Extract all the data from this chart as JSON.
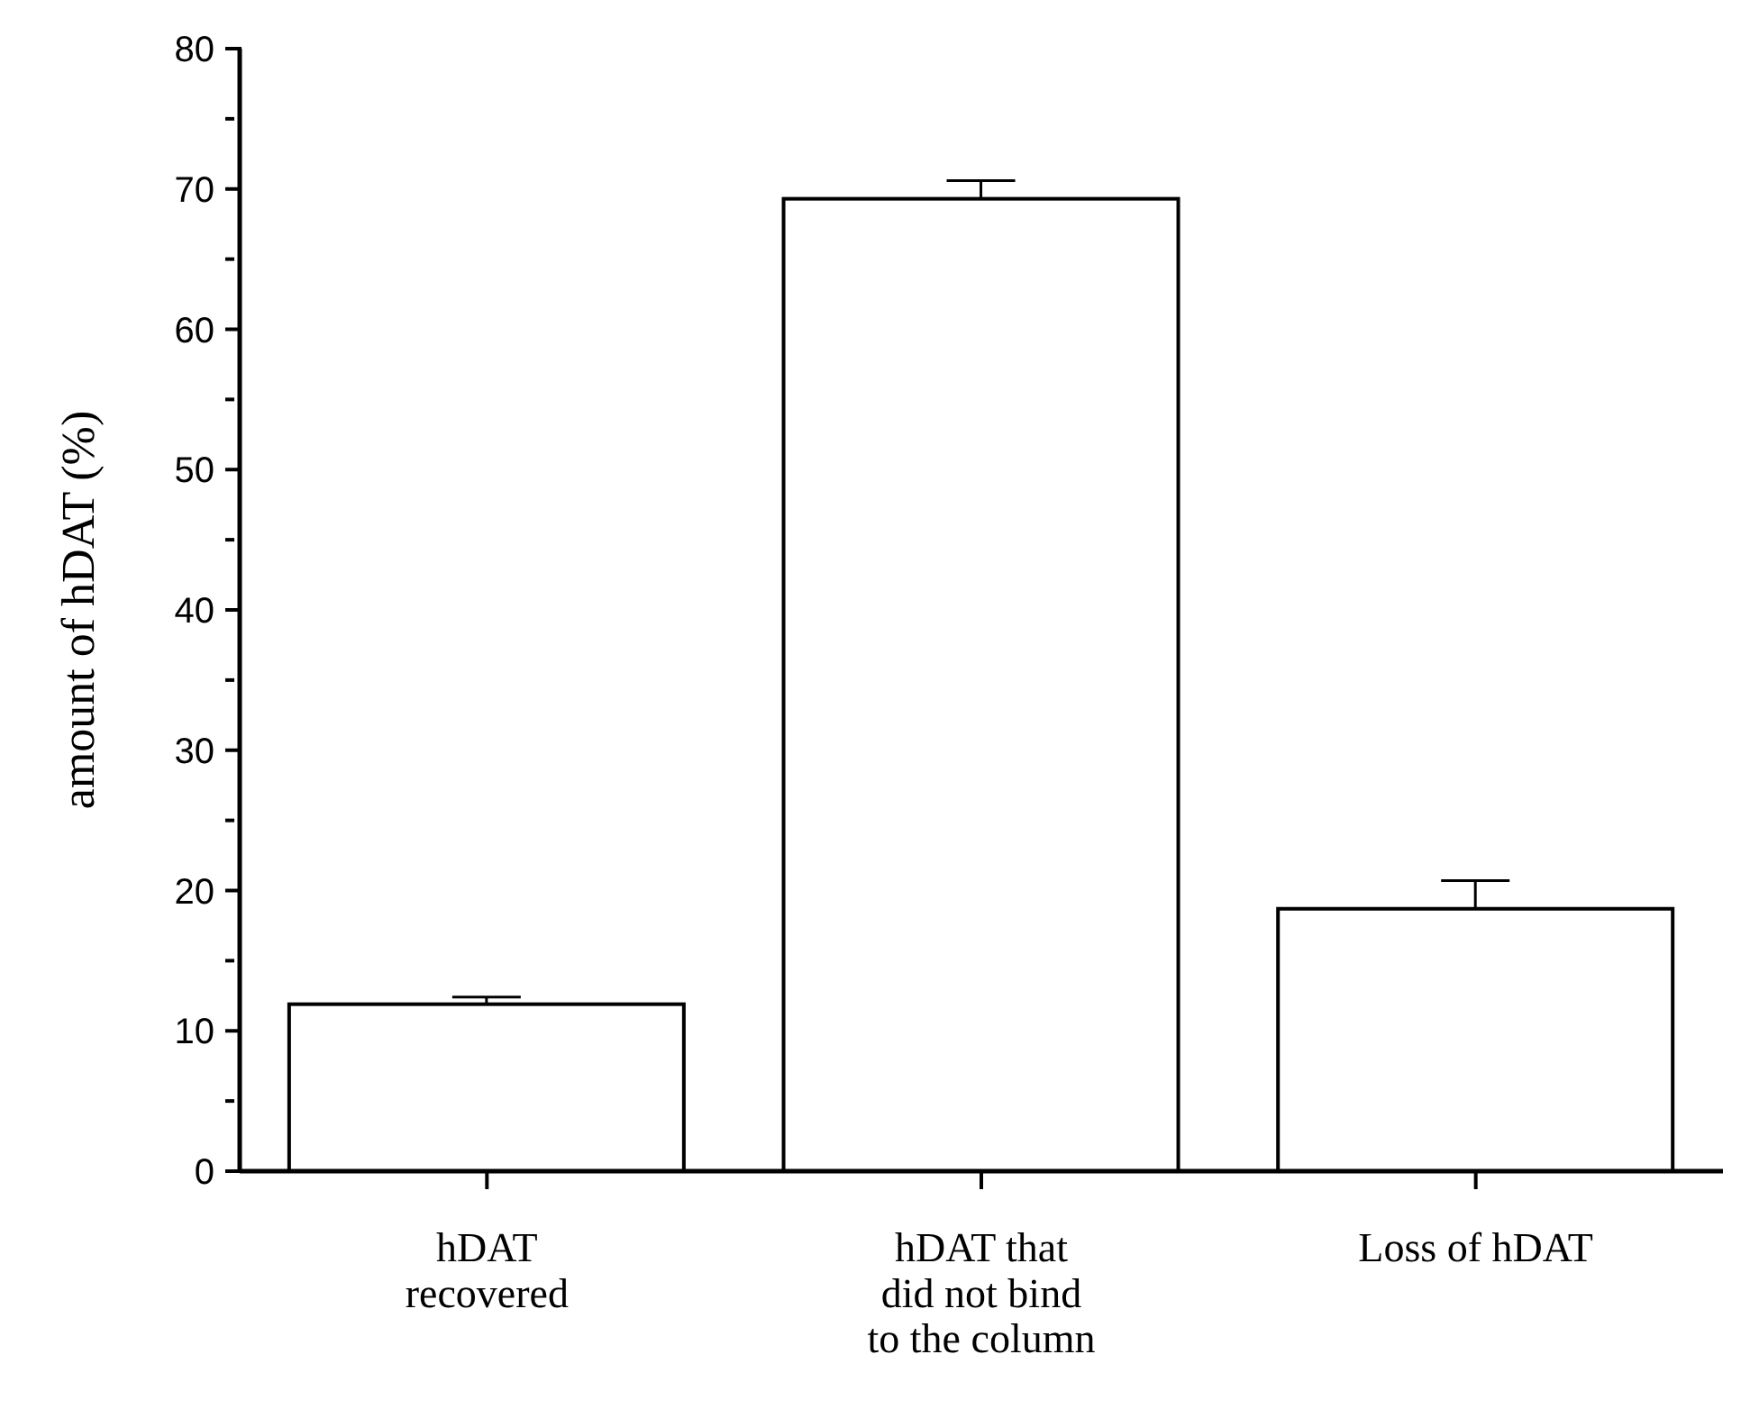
{
  "chart_data": {
    "type": "bar",
    "ylabel": "amount of hDAT (%)",
    "categories": [
      "hDAT\nrecovered",
      "hDAT that\ndid not bind\nto the column",
      "Loss of hDAT"
    ],
    "values": [
      11.9,
      69.3,
      18.7
    ],
    "errors": [
      0.5,
      1.3,
      2.0
    ],
    "color": "#ffffff",
    "ylim": [
      0,
      80
    ],
    "yticks": [
      0,
      {
        "value": 5,
        "label": null
      },
      10,
      {
        "value": 15,
        "label": null
      },
      20,
      {
        "value": 25,
        "label": null
      },
      30,
      {
        "value": 35,
        "label": null
      },
      40,
      {
        "value": 45,
        "label": null
      },
      50,
      {
        "value": 55,
        "label": null
      },
      60,
      {
        "value": 65,
        "label": null
      },
      70,
      {
        "value": 75,
        "label": null
      },
      80
    ],
    "grid": false,
    "legend": false
  }
}
